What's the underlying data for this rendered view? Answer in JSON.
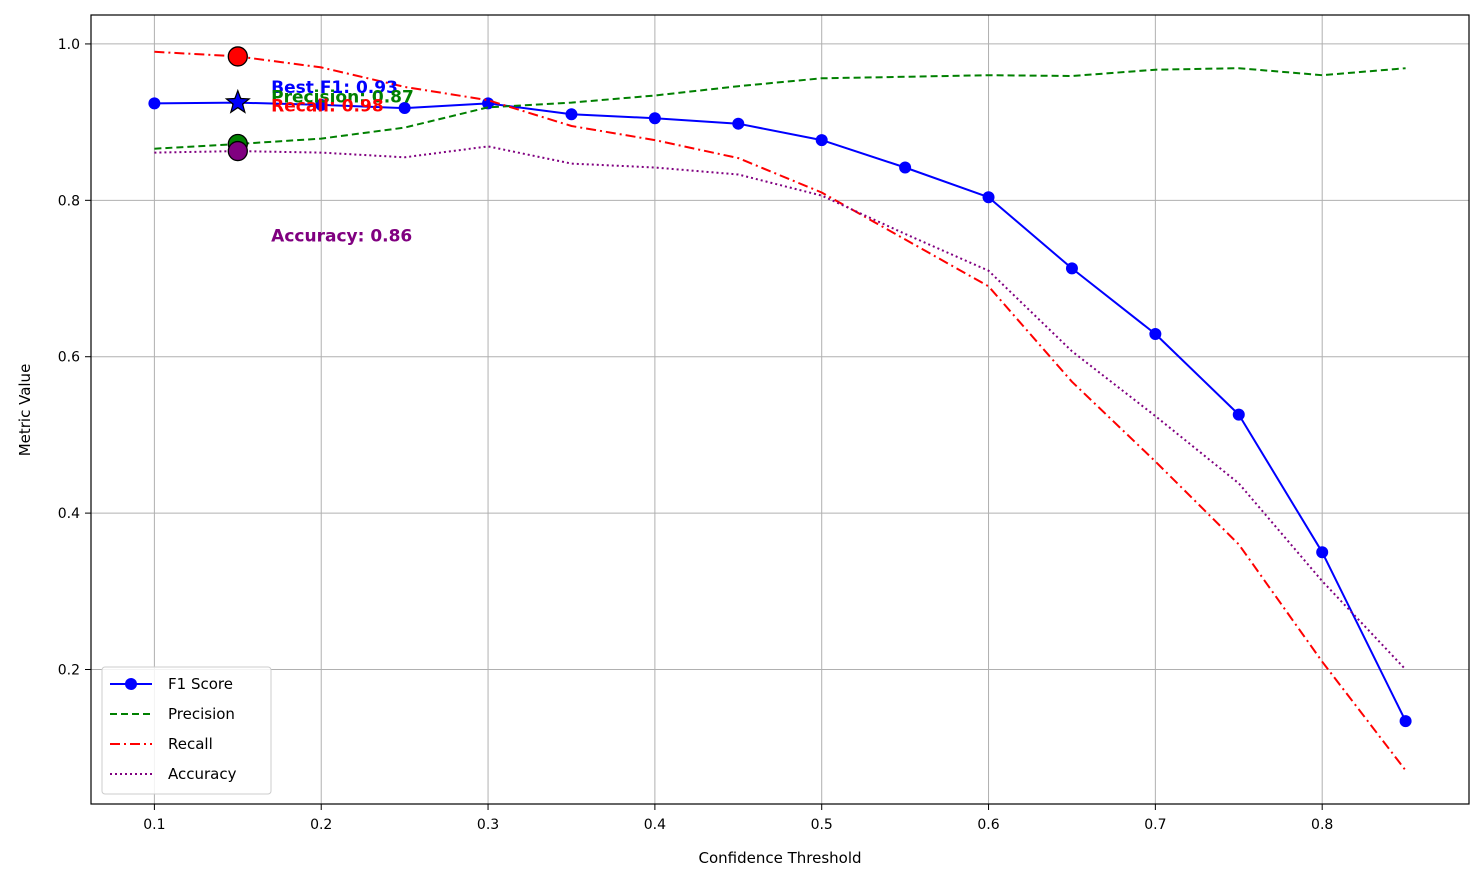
{
  "chart_data": {
    "type": "line",
    "title": "",
    "xlabel": "Confidence Threshold",
    "ylabel": "Metric Value",
    "xlim": [
      0.062,
      0.888
    ],
    "ylim": [
      0.028,
      1.037
    ],
    "x_ticks": [
      0.1,
      0.2,
      0.3,
      0.4,
      0.5,
      0.6,
      0.7,
      0.8
    ],
    "x_tick_labels": [
      "0.1",
      "0.2",
      "0.3",
      "0.4",
      "0.5",
      "0.6",
      "0.7",
      "0.8"
    ],
    "y_ticks": [
      0.2,
      0.4,
      0.6,
      0.8,
      1.0
    ],
    "y_tick_labels": [
      "0.2",
      "0.4",
      "0.6",
      "0.8",
      "1.0"
    ],
    "grid": true,
    "legend_position": "lower-left",
    "x": [
      0.1,
      0.15,
      0.2,
      0.25,
      0.3,
      0.35,
      0.4,
      0.45,
      0.5,
      0.55,
      0.6,
      0.65,
      0.7,
      0.75,
      0.8,
      0.85
    ],
    "series": [
      {
        "name": "F1 Score",
        "color": "#0000ff",
        "style": "solid",
        "marker": "circle",
        "values": [
          0.924,
          0.925,
          0.922,
          0.918,
          0.924,
          0.91,
          0.905,
          0.898,
          0.877,
          0.842,
          0.804,
          0.713,
          0.629,
          0.526,
          0.35,
          0.134
        ]
      },
      {
        "name": "Precision",
        "color": "#008000",
        "style": "dashed",
        "marker": "none",
        "values": [
          0.866,
          0.872,
          0.879,
          0.893,
          0.919,
          0.925,
          0.934,
          0.946,
          0.956,
          0.958,
          0.96,
          0.959,
          0.967,
          0.969,
          0.96,
          0.969
        ]
      },
      {
        "name": "Recall",
        "color": "#ff0000",
        "style": "dashdot",
        "marker": "none",
        "values": [
          0.99,
          0.984,
          0.97,
          0.945,
          0.928,
          0.895,
          0.877,
          0.854,
          0.81,
          0.75,
          0.69,
          0.568,
          0.466,
          0.36,
          0.21,
          0.071
        ]
      },
      {
        "name": "Accuracy",
        "color": "#800080",
        "style": "dotted",
        "marker": "none",
        "values": [
          0.861,
          0.863,
          0.861,
          0.855,
          0.869,
          0.847,
          0.842,
          0.833,
          0.806,
          0.757,
          0.71,
          0.607,
          0.524,
          0.438,
          0.313,
          0.2
        ]
      }
    ],
    "highlight_points": [
      {
        "x": 0.15,
        "y": 0.984,
        "marker": "circle",
        "color": "#ff0000"
      },
      {
        "x": 0.15,
        "y": 0.925,
        "marker": "star",
        "color": "#0000ff"
      },
      {
        "x": 0.15,
        "y": 0.872,
        "marker": "circle",
        "color": "#008000"
      },
      {
        "x": 0.15,
        "y": 0.863,
        "marker": "circle",
        "color": "#800080"
      }
    ],
    "annotations": [
      {
        "text": "Best F1: 0.93",
        "x": 0.17,
        "y": 0.945,
        "color": "#0000ff"
      },
      {
        "text": "Precision: 0.87",
        "x": 0.17,
        "y": 0.933,
        "color": "#008000"
      },
      {
        "text": "Recall: 0.98",
        "x": 0.17,
        "y": 0.921,
        "color": "#ff0000"
      },
      {
        "text": "Accuracy: 0.86",
        "x": 0.17,
        "y": 0.755,
        "color": "#800080"
      }
    ]
  }
}
